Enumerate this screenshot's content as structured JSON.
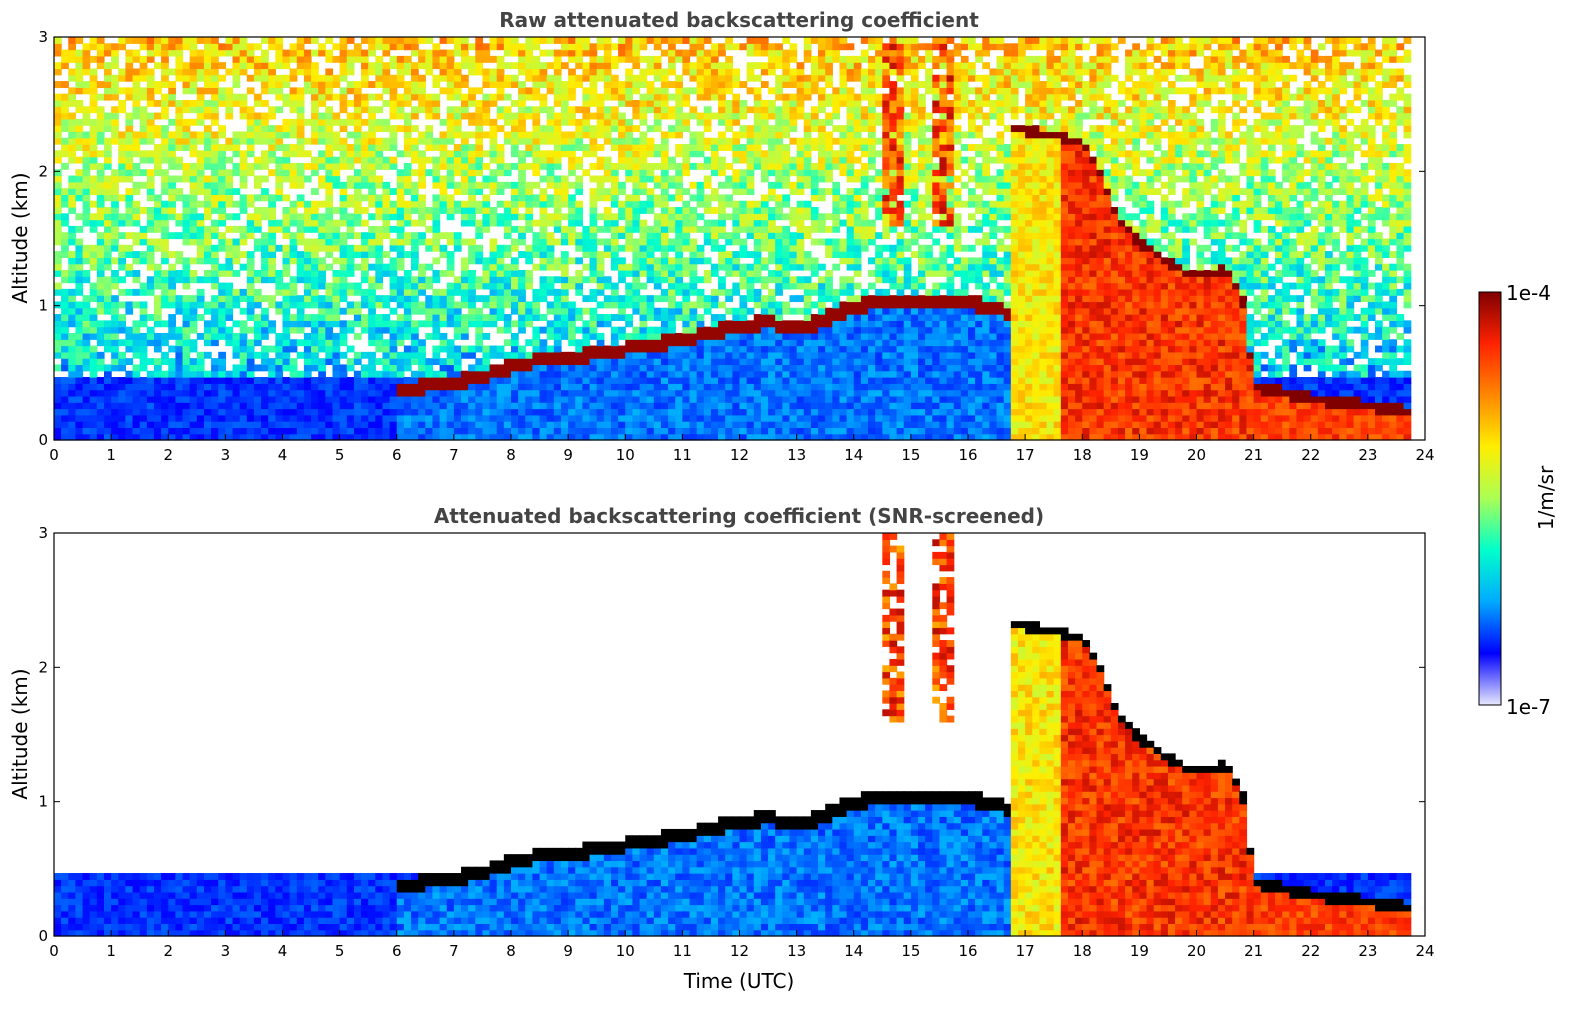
{
  "chart_data": [
    {
      "type": "heatmap",
      "title": "Raw attenuated backscattering coefficient",
      "xlabel": "",
      "ylabel": "Altitude (km)",
      "xlim": [
        0,
        24
      ],
      "ylim": [
        0,
        3
      ],
      "xticks": [
        "0",
        "1",
        "2",
        "3",
        "4",
        "5",
        "6",
        "7",
        "8",
        "9",
        "10",
        "11",
        "12",
        "13",
        "14",
        "15",
        "16",
        "17",
        "18",
        "19",
        "20",
        "21",
        "22",
        "23",
        "24"
      ],
      "yticks": [
        "0",
        "1",
        "2",
        "3"
      ],
      "screened": false,
      "layer_top_km": [
        {
          "t": 6.0,
          "z": 0.38
        },
        {
          "t": 6.5,
          "z": 0.4
        },
        {
          "t": 7.0,
          "z": 0.42
        },
        {
          "t": 7.5,
          "z": 0.48
        },
        {
          "t": 8.0,
          "z": 0.55
        },
        {
          "t": 8.5,
          "z": 0.6
        },
        {
          "t": 9.0,
          "z": 0.62
        },
        {
          "t": 9.5,
          "z": 0.64
        },
        {
          "t": 10.0,
          "z": 0.68
        },
        {
          "t": 11.0,
          "z": 0.75
        },
        {
          "t": 12.0,
          "z": 0.85
        },
        {
          "t": 12.5,
          "z": 0.88
        },
        {
          "t": 13.0,
          "z": 0.82
        },
        {
          "t": 13.5,
          "z": 0.9
        },
        {
          "t": 14.0,
          "z": 1.0
        },
        {
          "t": 15.0,
          "z": 1.05
        },
        {
          "t": 16.0,
          "z": 1.03
        },
        {
          "t": 16.7,
          "z": 0.95
        },
        {
          "t": 16.8,
          "z": 2.35
        },
        {
          "t": 17.5,
          "z": 2.3
        },
        {
          "t": 18.0,
          "z": 2.25
        },
        {
          "t": 18.3,
          "z": 2.05
        },
        {
          "t": 18.6,
          "z": 1.7
        },
        {
          "t": 19.0,
          "z": 1.5
        },
        {
          "t": 19.5,
          "z": 1.35
        },
        {
          "t": 20.0,
          "z": 1.25
        },
        {
          "t": 20.5,
          "z": 1.3
        },
        {
          "t": 20.8,
          "z": 1.1
        },
        {
          "t": 21.0,
          "z": 0.45
        },
        {
          "t": 21.5,
          "z": 0.4
        },
        {
          "t": 22.0,
          "z": 0.35
        },
        {
          "t": 22.5,
          "z": 0.32
        },
        {
          "t": 23.0,
          "z": 0.3
        },
        {
          "t": 23.8,
          "z": 0.25
        }
      ]
    },
    {
      "type": "heatmap",
      "title": "Attenuated backscattering coefficient (SNR-screened)",
      "xlabel": "Time (UTC)",
      "ylabel": "Altitude (km)",
      "xlim": [
        0,
        24
      ],
      "ylim": [
        0,
        3
      ],
      "xticks": [
        "0",
        "1",
        "2",
        "3",
        "4",
        "5",
        "6",
        "7",
        "8",
        "9",
        "10",
        "11",
        "12",
        "13",
        "14",
        "15",
        "16",
        "17",
        "18",
        "19",
        "20",
        "21",
        "22",
        "23",
        "24"
      ],
      "yticks": [
        "0",
        "1",
        "2",
        "3"
      ],
      "screened": true
    }
  ],
  "colorbar": {
    "max_label": "1e-4",
    "min_label": "1e-7",
    "unit_label": "1/m/sr",
    "colormap": "jet",
    "colors": [
      "#e8e8ff",
      "#0000ff",
      "#00aaff",
      "#00ffcc",
      "#aaff55",
      "#ffee00",
      "#ff8800",
      "#ff2200",
      "#800000"
    ]
  }
}
